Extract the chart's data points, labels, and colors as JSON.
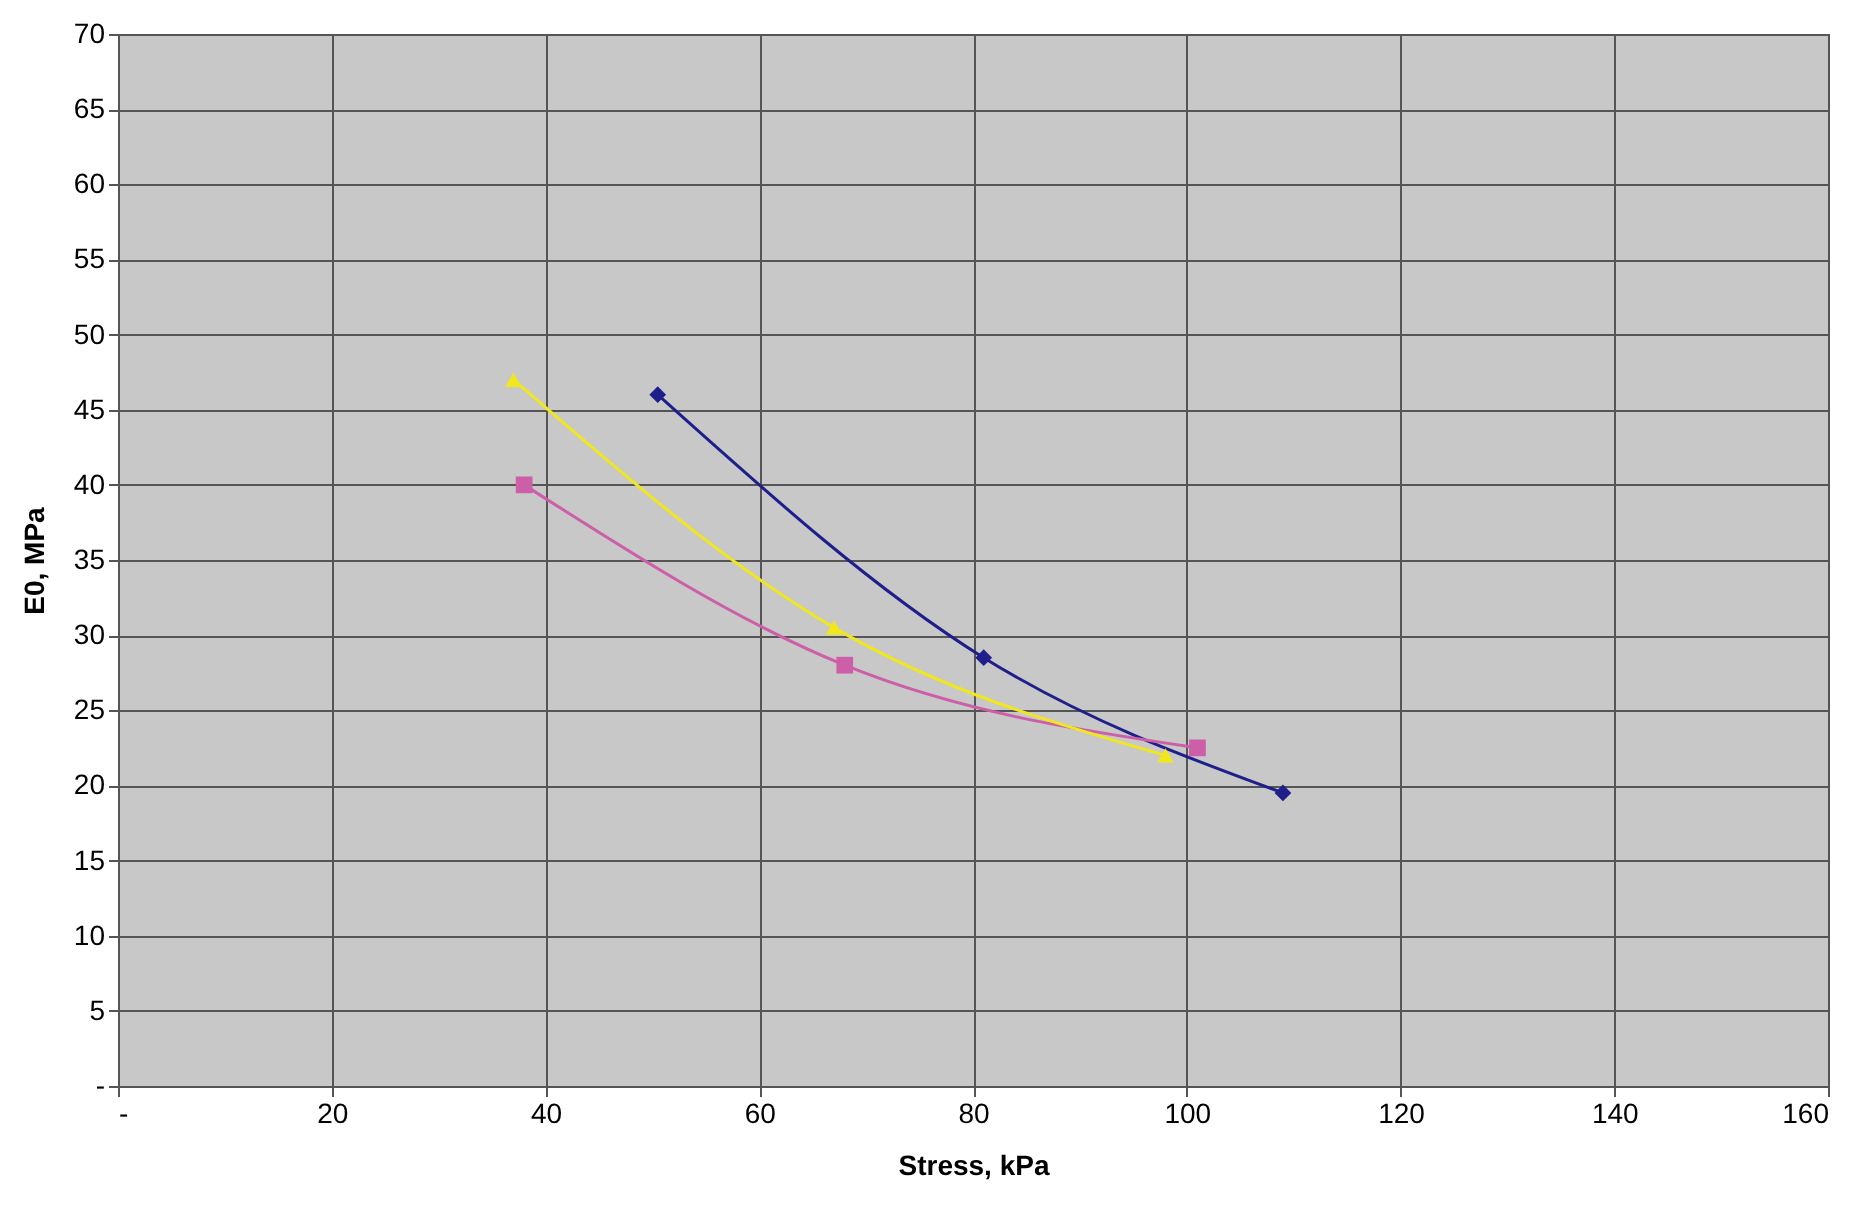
{
  "chart_data": {
    "type": "line",
    "xlabel": "Stress, kPa",
    "ylabel": "E0, MPa",
    "xlim": [
      0,
      160
    ],
    "xticks": [
      {
        "value": 0,
        "label": "-"
      },
      20,
      40,
      60,
      80,
      100,
      120,
      140,
      160
    ],
    "ylim": [
      0,
      70
    ],
    "yticks": [
      {
        "value": 0,
        "label": "-"
      },
      5,
      10,
      15,
      20,
      25,
      30,
      35,
      40,
      45,
      50,
      55,
      60,
      65,
      70
    ],
    "grid": true,
    "legend": false,
    "series": [
      {
        "color": "#1f1f8c",
        "marker": "diamond",
        "x": [
          50.5,
          81,
          109
        ],
        "values": [
          46,
          28.5,
          19.5
        ]
      },
      {
        "color": "#cc5fa8",
        "marker": "square",
        "x": [
          38,
          68,
          101
        ],
        "values": [
          40,
          28,
          22.5
        ]
      },
      {
        "color": "#f0e81c",
        "marker": "triangle",
        "x": [
          37,
          67,
          98
        ],
        "values": [
          47,
          30.5,
          22
        ]
      }
    ]
  }
}
